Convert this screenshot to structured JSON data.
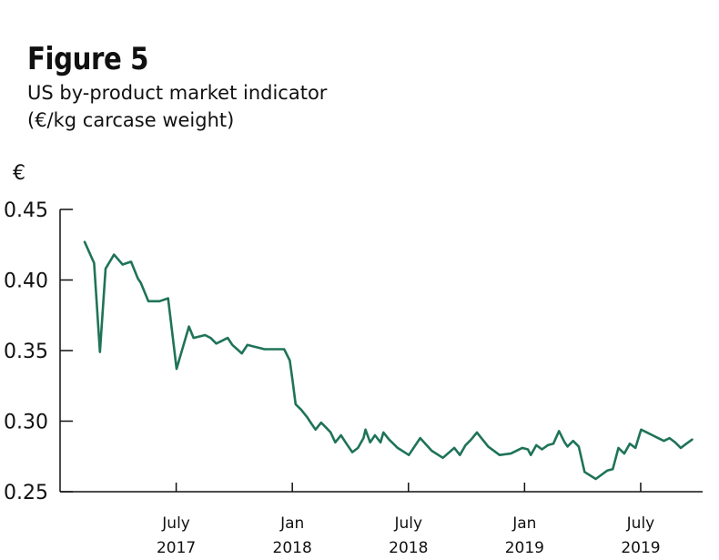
{
  "figure": {
    "title": "Figure 5",
    "subtitle_line1": "US by-product market indicator",
    "subtitle_line2": "(€/kg carcase weight)"
  },
  "colors": {
    "line": "#1f7359",
    "axis": "#111111",
    "text": "#111111"
  },
  "chart_data": {
    "type": "line",
    "title": "Figure 5",
    "subtitle": "US by-product market indicator (€/kg carcase weight)",
    "ylabel": "€",
    "xlabel": "",
    "ylim": [
      0.25,
      0.45
    ],
    "yticks": [
      0.25,
      0.3,
      0.35,
      0.4,
      0.45
    ],
    "ytick_labels": [
      "0.25",
      "0.30",
      "0.35",
      "0.40",
      "0.45"
    ],
    "x_unit": "months since Jan 2017",
    "xlim": [
      0,
      33.2
    ],
    "xticks": [
      {
        "x": 6,
        "line1": "July",
        "line2": "2017"
      },
      {
        "x": 12,
        "line1": "Jan",
        "line2": "2018"
      },
      {
        "x": 18,
        "line1": "July",
        "line2": "2018"
      },
      {
        "x": 24,
        "line1": "Jan",
        "line2": "2019"
      },
      {
        "x": 30,
        "line1": "July",
        "line2": "2019"
      }
    ],
    "grid": false,
    "series": [
      {
        "name": "US by-product market indicator",
        "x": [
          1.27,
          1.76,
          2.06,
          2.35,
          2.79,
          3.23,
          3.67,
          4.02,
          4.17,
          4.56,
          5.14,
          5.58,
          6.02,
          6.66,
          6.9,
          7.49,
          7.78,
          8.07,
          8.37,
          8.66,
          8.9,
          9.39,
          9.68,
          9.97,
          10.26,
          10.56,
          11.58,
          11.87,
          12.02,
          12.17,
          12.46,
          12.76,
          12.95,
          13.2,
          13.49,
          13.78,
          13.98,
          14.22,
          14.51,
          14.8,
          15.1,
          15.39,
          15.68,
          15.78,
          16.02,
          16.27,
          16.56,
          16.71,
          17.0,
          17.44,
          18.02,
          18.61,
          19.2,
          19.78,
          20.37,
          20.66,
          20.95,
          21.24,
          21.54,
          21.83,
          22.12,
          22.71,
          23.29,
          23.88,
          24.17,
          24.32,
          24.61,
          24.9,
          25.2,
          25.49,
          25.78,
          26.07,
          26.22,
          26.51,
          26.8,
          27.1,
          27.68,
          28.27,
          28.56,
          28.85,
          29.15,
          29.44,
          29.73,
          30.02,
          30.32,
          30.61,
          30.9,
          31.2,
          31.49,
          31.78,
          32.07,
          32.36,
          32.66
        ],
        "y": [
          0.427,
          0.412,
          0.349,
          0.408,
          0.418,
          0.411,
          0.413,
          0.401,
          0.398,
          0.385,
          0.385,
          0.387,
          0.337,
          0.367,
          0.359,
          0.361,
          0.359,
          0.355,
          0.357,
          0.359,
          0.354,
          0.348,
          0.354,
          0.353,
          0.352,
          0.351,
          0.351,
          0.343,
          0.328,
          0.312,
          0.308,
          0.303,
          0.299,
          0.294,
          0.299,
          0.295,
          0.292,
          0.285,
          0.29,
          0.284,
          0.278,
          0.281,
          0.288,
          0.294,
          0.285,
          0.29,
          0.285,
          0.292,
          0.287,
          0.281,
          0.276,
          0.288,
          0.279,
          0.274,
          0.281,
          0.276,
          0.283,
          0.287,
          0.292,
          0.287,
          0.282,
          0.276,
          0.277,
          0.281,
          0.28,
          0.276,
          0.283,
          0.28,
          0.283,
          0.284,
          0.293,
          0.285,
          0.282,
          0.286,
          0.282,
          0.264,
          0.259,
          0.265,
          0.266,
          0.281,
          0.277,
          0.284,
          0.281,
          0.294,
          0.292,
          0.29,
          0.288,
          0.286,
          0.288,
          0.285,
          0.281,
          0.284,
          0.287
        ]
      }
    ]
  }
}
